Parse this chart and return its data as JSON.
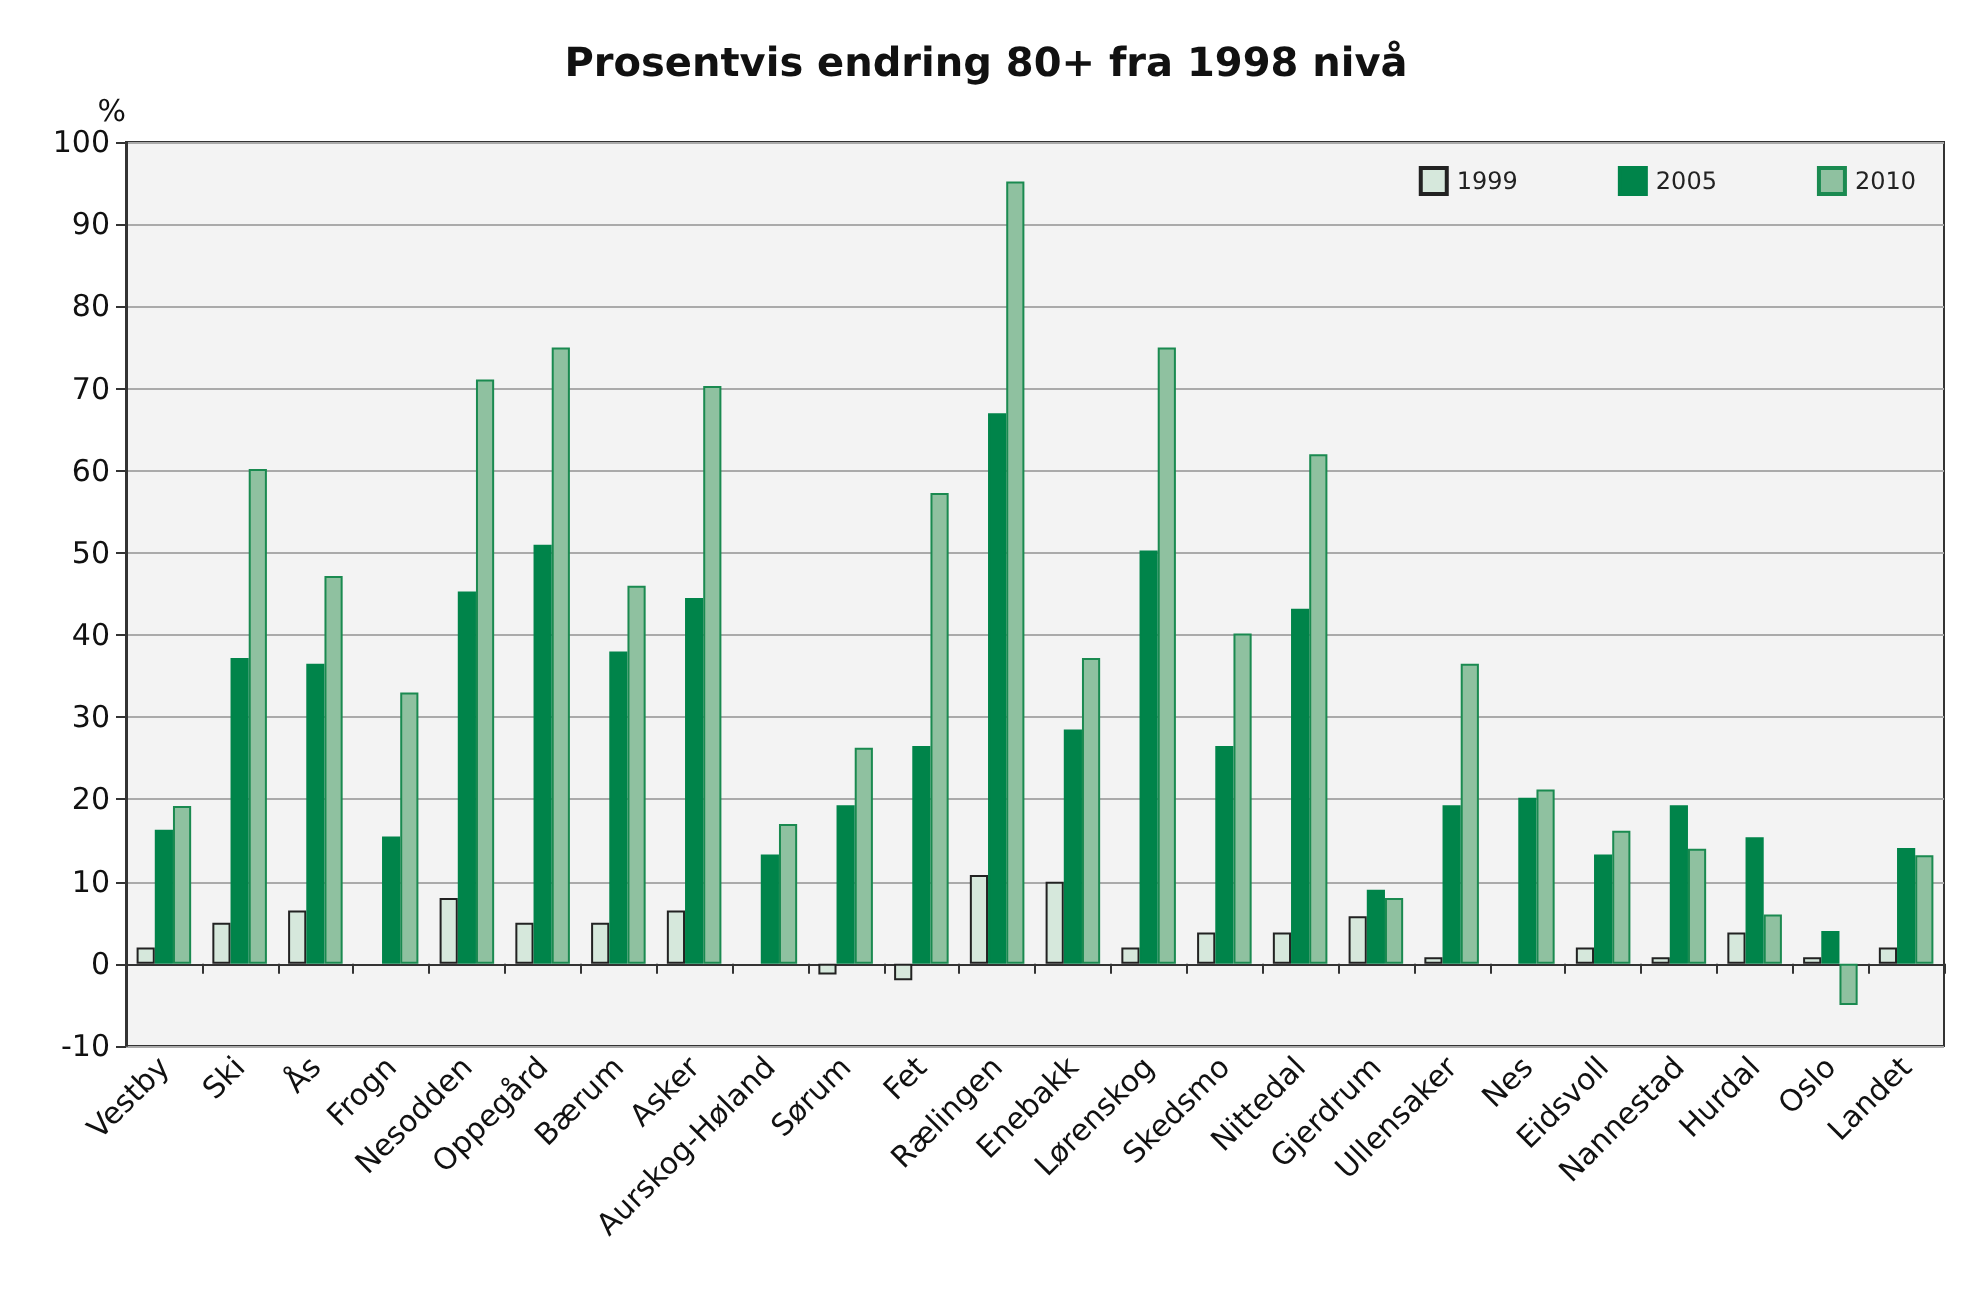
{
  "chart_data": {
    "type": "bar",
    "title": "Prosentvis endring 80+ fra 1998 nivå",
    "ylabel": "%",
    "categories": [
      "Vestby",
      "Ski",
      "Ås",
      "Frogn",
      "Nesodden",
      "Oppegård",
      "Bærum",
      "Asker",
      "Aurskog-Høland",
      "Sørum",
      "Fet",
      "Rælingen",
      "Enebakk",
      "Lørenskog",
      "Skedsmo",
      "Nittedal",
      "Gjerdrum",
      "Ullensaker",
      "Nes",
      "Eidsvoll",
      "Nannestad",
      "Hurdal",
      "Oslo",
      "Landet"
    ],
    "series": [
      {
        "name": "1999",
        "color": "#d6e8dc",
        "values": [
          2,
          5,
          6.5,
          null,
          8,
          5,
          5,
          6.5,
          null,
          -1.3,
          -2,
          10.8,
          10,
          2,
          3.8,
          3.8,
          5.8,
          0.8,
          null,
          2,
          0.8,
          3.8,
          0.8,
          2
        ]
      },
      {
        "name": "2005",
        "color": "#00844a",
        "values": [
          16.3,
          37.2,
          36.5,
          15.5,
          45.3,
          51,
          38,
          44.5,
          13.3,
          19.3,
          26.5,
          67,
          28.5,
          50.3,
          26.5,
          43.2,
          9,
          19.3,
          20.2,
          13.3,
          19.3,
          15.4,
          4,
          14.1
        ]
      },
      {
        "name": "2010",
        "color": "#8fc1a0",
        "values": [
          19.2,
          60.2,
          47.2,
          33,
          71.1,
          75,
          46,
          70.3,
          17,
          26.3,
          57.3,
          95.2,
          37.2,
          75,
          40.2,
          62,
          8,
          36.5,
          21.2,
          16.2,
          14,
          6,
          -5,
          13.2
        ]
      }
    ],
    "ylim": [
      -10,
      100
    ],
    "yticks": [
      -10,
      0,
      10,
      20,
      30,
      40,
      50,
      60,
      70,
      80,
      90,
      100
    ],
    "grid": "y",
    "legend": "top right"
  }
}
